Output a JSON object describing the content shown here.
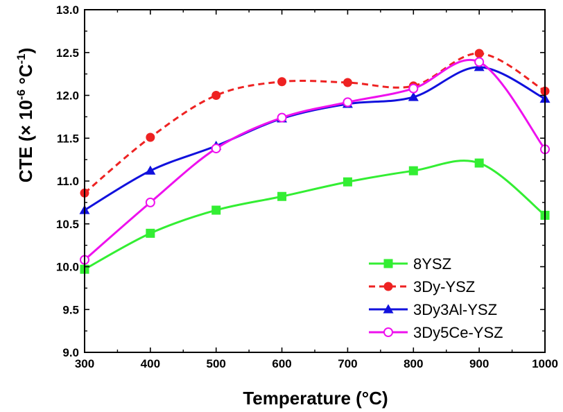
{
  "chart_data": {
    "type": "line",
    "title": "",
    "xlabel": "Temperature (°C)",
    "ylabel": {
      "prefix": "CTE (× 10",
      "exp1": "-6",
      "mid": " °C",
      "exp2": "-1",
      "suffix": ")"
    },
    "xlim": [
      300,
      1000
    ],
    "ylim": [
      9.0,
      13.0
    ],
    "x_ticks": [
      "300",
      "400",
      "500",
      "600",
      "700",
      "800",
      "900",
      "1000"
    ],
    "y_ticks": [
      "9.0",
      "9.5",
      "10.0",
      "10.5",
      "11.0",
      "11.5",
      "12.0",
      "12.5",
      "13.0"
    ],
    "grid": false,
    "legend_position": "bottom-right",
    "x": [
      300,
      400,
      500,
      600,
      700,
      800,
      900,
      1000
    ],
    "series": [
      {
        "name": "8YSZ",
        "color": "#33ee33",
        "marker": "square",
        "line": "solid",
        "values": [
          9.97,
          10.39,
          10.66,
          10.82,
          10.99,
          11.12,
          11.21,
          10.6
        ]
      },
      {
        "name": "3Dy-YSZ",
        "color": "#ee2222",
        "marker": "circle",
        "line": "dashed",
        "values": [
          10.86,
          11.51,
          12.0,
          12.16,
          12.15,
          12.11,
          12.49,
          12.05
        ]
      },
      {
        "name": "3Dy3Al-YSZ",
        "color": "#1111dd",
        "marker": "triangle",
        "line": "solid",
        "values": [
          10.66,
          11.12,
          11.41,
          11.73,
          11.9,
          11.98,
          12.33,
          11.96
        ]
      },
      {
        "name": "3Dy5Ce-YSZ",
        "color": "#ee11ee",
        "marker": "circle-open",
        "line": "solid",
        "values": [
          10.08,
          10.75,
          11.38,
          11.74,
          11.92,
          12.08,
          12.39,
          11.37
        ]
      }
    ]
  }
}
